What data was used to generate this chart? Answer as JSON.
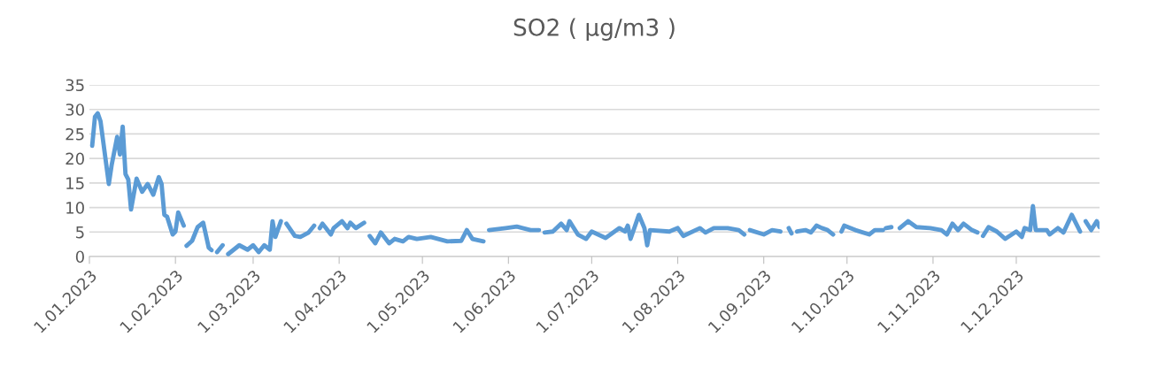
{
  "chart_data": {
    "type": "line",
    "title": "SO2 ( µg/m3 )",
    "x": [
      "2023-01-02",
      "2023-01-03",
      "2023-01-04",
      "2023-01-05",
      "2023-01-08",
      "2023-01-09",
      "2023-01-11",
      "2023-01-12",
      "2023-01-13",
      "2023-01-14",
      "2023-01-15",
      "2023-01-16",
      "2023-01-18",
      "2023-01-20",
      "2023-01-22",
      "2023-01-24",
      "2023-01-26",
      "2023-01-27",
      "2023-01-28",
      "2023-01-29",
      "2023-01-31",
      "2023-02-01",
      "2023-02-02",
      "2023-02-04",
      "2023-02-04T12:00",
      "2023-02-05",
      "2023-02-07",
      "2023-02-09",
      "2023-02-11",
      "2023-02-13",
      "2023-02-14",
      "2023-02-15",
      "2023-02-16",
      "2023-02-18",
      "2023-02-19",
      "2023-02-20",
      "2023-02-24",
      "2023-02-27",
      "2023-03-01",
      "2023-03-03",
      "2023-03-05",
      "2023-03-07",
      "2023-03-08",
      "2023-03-09",
      "2023-03-11",
      "2023-03-12",
      "2023-03-13",
      "2023-03-16",
      "2023-03-18",
      "2023-03-21",
      "2023-03-23",
      "2023-03-24",
      "2023-03-25",
      "2023-03-26",
      "2023-03-29",
      "2023-03-30",
      "2023-04-02",
      "2023-04-04",
      "2023-04-05",
      "2023-04-07",
      "2023-04-10",
      "2023-04-11",
      "2023-04-12",
      "2023-04-14",
      "2023-04-16",
      "2023-04-19",
      "2023-04-21",
      "2023-04-24",
      "2023-04-26",
      "2023-04-29",
      "2023-05-04",
      "2023-05-10",
      "2023-05-15",
      "2023-05-17",
      "2023-05-19",
      "2023-05-23",
      "2023-05-24",
      "2023-05-25",
      "2023-05-31",
      "2023-06-04",
      "2023-06-09",
      "2023-06-12",
      "2023-06-13",
      "2023-06-14",
      "2023-06-17",
      "2023-06-20",
      "2023-06-22",
      "2023-06-23",
      "2023-06-26",
      "2023-06-29",
      "2023-07-01",
      "2023-07-06",
      "2023-07-11",
      "2023-07-13",
      "2023-07-14",
      "2023-07-15",
      "2023-07-18",
      "2023-07-20",
      "2023-07-21",
      "2023-07-22",
      "2023-07-29",
      "2023-08-01",
      "2023-08-03",
      "2023-08-09",
      "2023-08-11",
      "2023-08-14",
      "2023-08-19",
      "2023-08-23",
      "2023-08-25",
      "2023-08-26",
      "2023-08-27",
      "2023-09-01",
      "2023-09-04",
      "2023-09-07",
      "2023-09-08",
      "2023-09-10",
      "2023-09-11",
      "2023-09-12",
      "2023-09-13",
      "2023-09-16",
      "2023-09-18",
      "2023-09-20",
      "2023-09-22",
      "2023-09-24",
      "2023-09-26",
      "2023-09-27",
      "2023-09-29",
      "2023-09-30",
      "2023-10-04",
      "2023-10-09",
      "2023-10-11",
      "2023-10-14",
      "2023-10-14T12:00",
      "2023-10-15",
      "2023-10-17",
      "2023-10-18",
      "2023-10-20",
      "2023-10-23",
      "2023-10-26",
      "2023-10-31",
      "2023-11-04",
      "2023-11-06",
      "2023-11-08",
      "2023-11-10",
      "2023-11-12",
      "2023-11-15",
      "2023-11-17",
      "2023-11-18",
      "2023-11-19",
      "2023-11-21",
      "2023-11-24",
      "2023-11-27",
      "2023-12-01",
      "2023-12-03",
      "2023-12-04",
      "2023-12-06",
      "2023-12-07",
      "2023-12-08",
      "2023-12-12",
      "2023-12-13",
      "2023-12-16",
      "2023-12-18",
      "2023-12-21",
      "2023-12-24",
      "2023-12-25",
      "2023-12-26",
      "2023-12-28",
      "2023-12-30",
      "2023-12-31"
    ],
    "values": [
      22.6,
      28.5,
      29.2,
      27.6,
      14.8,
      18.6,
      24.4,
      20.8,
      26.5,
      16.8,
      15.7,
      9.6,
      15.9,
      13.2,
      14.8,
      12.6,
      16.2,
      14.8,
      8.5,
      8.1,
      4.5,
      5.1,
      9.0,
      6.3,
      null,
      2.2,
      3.2,
      6.0,
      6.9,
      1.8,
      1.3,
      null,
      0.9,
      2.3,
      null,
      0.5,
      2.3,
      1.4,
      2.3,
      0.9,
      2.3,
      1.4,
      7.2,
      4.0,
      7.2,
      null,
      6.7,
      4.2,
      4.0,
      4.9,
      6.3,
      null,
      5.8,
      6.7,
      4.5,
      5.8,
      7.2,
      5.8,
      6.9,
      5.8,
      6.9,
      null,
      4.2,
      2.7,
      4.9,
      2.7,
      3.6,
      3.1,
      4.0,
      3.6,
      4.0,
      3.1,
      3.2,
      5.4,
      3.6,
      3.1,
      null,
      5.4,
      5.8,
      6.1,
      5.4,
      5.4,
      null,
      4.9,
      5.1,
      6.7,
      5.4,
      7.2,
      4.5,
      3.6,
      5.1,
      3.8,
      5.8,
      5.1,
      6.3,
      3.6,
      8.5,
      5.8,
      2.3,
      5.4,
      5.1,
      5.8,
      4.2,
      5.8,
      4.9,
      5.8,
      5.8,
      5.4,
      4.5,
      null,
      5.4,
      4.5,
      5.4,
      5.1,
      null,
      5.8,
      4.7,
      null,
      5.1,
      5.4,
      4.9,
      6.3,
      5.8,
      5.4,
      4.5,
      null,
      5.1,
      6.3,
      5.4,
      4.5,
      5.4,
      5.4,
      null,
      5.8,
      6.0,
      null,
      5.8,
      7.2,
      6.0,
      5.8,
      5.4,
      4.5,
      6.7,
      5.4,
      6.7,
      5.4,
      4.9,
      null,
      4.2,
      6.0,
      5.1,
      3.6,
      5.1,
      4.0,
      5.8,
      5.4,
      10.3,
      5.4,
      5.4,
      4.5,
      5.8,
      4.9,
      8.5,
      5.1,
      null,
      7.2,
      5.4,
      7.2,
      6.0
    ],
    "color": "#5b9bd5",
    "xlim": [
      "2023-01-01",
      "2023-12-31"
    ],
    "xticks": [
      {
        "value": "2023-01-01",
        "label": "1.01.2023"
      },
      {
        "value": "2023-02-01",
        "label": "1.02.2023"
      },
      {
        "value": "2023-03-01",
        "label": "1.03.2023"
      },
      {
        "value": "2023-04-01",
        "label": "1.04.2023"
      },
      {
        "value": "2023-05-01",
        "label": "1.05.2023"
      },
      {
        "value": "2023-06-01",
        "label": "1.06.2023"
      },
      {
        "value": "2023-07-01",
        "label": "1.07.2023"
      },
      {
        "value": "2023-08-01",
        "label": "1.08.2023"
      },
      {
        "value": "2023-09-01",
        "label": "1.09.2023"
      },
      {
        "value": "2023-10-01",
        "label": "1.10.2023"
      },
      {
        "value": "2023-11-01",
        "label": "1.11.2023"
      },
      {
        "value": "2023-12-01",
        "label": "1.12.2023"
      }
    ],
    "ylim": [
      0,
      35
    ],
    "yticks": [
      0,
      5,
      10,
      15,
      20,
      25,
      30,
      35
    ],
    "grid": "y",
    "legend": false,
    "marker": "none",
    "line_style": "solid"
  }
}
